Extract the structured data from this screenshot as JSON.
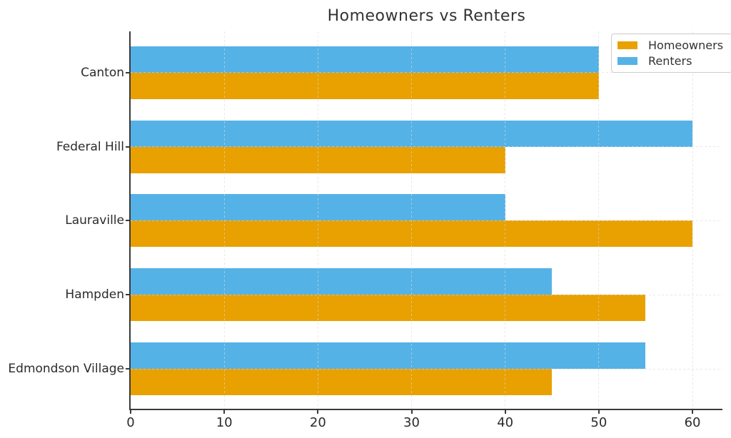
{
  "chart_data": {
    "type": "bar",
    "orientation": "horizontal",
    "title": "Homeowners vs Renters",
    "categories": [
      "Canton",
      "Federal Hill",
      "Lauraville",
      "Hampden",
      "Edmondson Village"
    ],
    "series": [
      {
        "name": "Homeowners",
        "color": "#E8A100",
        "values": [
          50,
          40,
          60,
          55,
          45
        ]
      },
      {
        "name": "Renters",
        "color": "#55B2E6",
        "values": [
          50,
          60,
          40,
          45,
          55
        ]
      }
    ],
    "x_ticks": [
      0,
      10,
      20,
      30,
      40,
      50,
      60
    ],
    "xlim": [
      0,
      63.2
    ],
    "xlabel": "",
    "ylabel": "",
    "grid": true,
    "legend": {
      "position": "upper-right"
    },
    "colors": {
      "grid": "#d9d9d9",
      "spine": "#3a3a3a",
      "tick_text": "#2b2b2b",
      "title_text": "#333333",
      "legend_border": "#cccccc",
      "background": "#ffffff"
    }
  }
}
